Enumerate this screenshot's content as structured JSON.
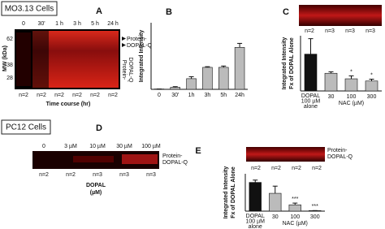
{
  "cell_lines": [
    "MO3.13 Cells",
    "PC12 Cells"
  ],
  "panel_a": {
    "label": "A",
    "lanes": [
      "0",
      "30'",
      "1 h",
      "3 h",
      "5 h",
      "24 h"
    ],
    "mw_label": "MW (kDa)",
    "mw_markers": [
      62,
      38,
      28
    ],
    "band_label": [
      "Protein-",
      "DOPAL-Q"
    ],
    "side_label": [
      "Protein-",
      "DOPAL-Q"
    ],
    "n": [
      "n=2",
      "n=2",
      "n=2",
      "n=2",
      "n=2",
      "n=2"
    ],
    "xlabel": "Time course (hr)"
  },
  "panel_c_gel": {
    "n": [
      "n=2",
      "n=3",
      "n=3",
      "n=3"
    ]
  },
  "panel_d": {
    "label": "D",
    "lanes": [
      "0",
      "3 µM",
      "10 µM",
      "30 µM",
      "100 µM"
    ],
    "band_label": [
      "Protein-",
      "DOPAL-Q"
    ],
    "n": [
      "n=2",
      "n=2",
      "n=3",
      "n=3",
      "n=3"
    ],
    "xlabel": [
      "DOPAL",
      "(µM)"
    ]
  },
  "panel_e_gel": {
    "band_label": [
      "Protein-",
      "DOPAL-Q"
    ],
    "n": [
      "n=2",
      "n=2",
      "n=2",
      "n=2"
    ]
  },
  "chart_data": [
    {
      "type": "bar",
      "label": "B",
      "ylabel": [
        "Integrated Intensity"
      ],
      "categories": [
        "0",
        "30'",
        "1h",
        "3h",
        "5h",
        "24h"
      ],
      "values": [
        0.5,
        3,
        16,
        33,
        33,
        63
      ],
      "errors": [
        0,
        1,
        3,
        1,
        2,
        6
      ],
      "colors": [
        "#bbbbbb",
        "#bbbbbb",
        "#bbbbbb",
        "#bbbbbb",
        "#bbbbbb",
        "#bbbbbb"
      ],
      "ylim": [
        0,
        100
      ]
    },
    {
      "type": "bar",
      "label": "C",
      "ylabel": [
        "Integrated Intensity",
        "Fx of DOPAL Alone"
      ],
      "categories": [
        [
          "DOPAL",
          "100 µM",
          "alone"
        ],
        "30",
        "100",
        "300"
      ],
      "group_label": "NAC (µM)",
      "values": [
        1.0,
        0.48,
        0.33,
        0.27
      ],
      "errors": [
        0.42,
        0.04,
        0.08,
        0.05
      ],
      "significance": [
        null,
        null,
        "*",
        "*"
      ],
      "colors": [
        "#111111",
        "#bbbbbb",
        "#bbbbbb",
        "#bbbbbb"
      ],
      "ylim": [
        0,
        1.5
      ]
    },
    {
      "type": "bar",
      "label": "E",
      "ylabel": [
        "Integrated Intensity",
        "Fx of DOPAL Alone"
      ],
      "categories": [
        [
          "DOPAL",
          "100 µM",
          "alone"
        ],
        "30",
        "100",
        "300"
      ],
      "group_label": "NAC (µM)",
      "values": [
        1.0,
        0.62,
        0.22,
        0.02
      ],
      "errors": [
        0.08,
        0.25,
        0.06,
        0
      ],
      "significance": [
        null,
        null,
        "***",
        "***"
      ],
      "colors": [
        "#111111",
        "#bbbbbb",
        "#bbbbbb",
        "#bbbbbb"
      ],
      "ylim": [
        0,
        1.3
      ]
    }
  ]
}
